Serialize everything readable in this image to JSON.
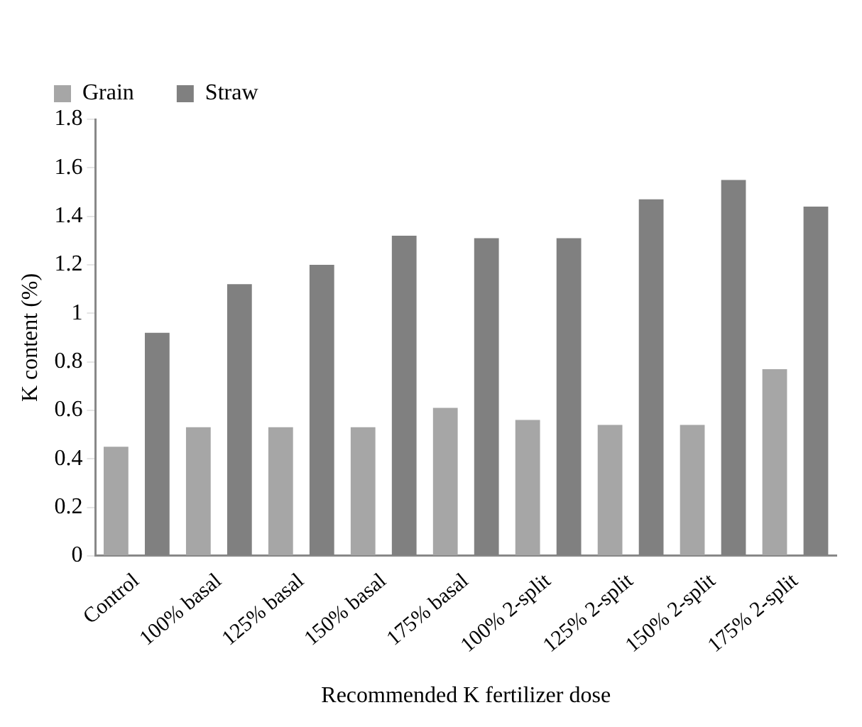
{
  "chart_data": {
    "type": "bar",
    "xlabel": "Recommended K fertilizer dose",
    "ylabel": "K content (%)",
    "categories": [
      "Control",
      "100% basal",
      "125% basal",
      "150% basal",
      "175% basal",
      "100% 2-split",
      "125% 2-split",
      "150% 2-split",
      "175% 2-split"
    ],
    "series": [
      {
        "name": "Grain",
        "color": "#a6a6a6",
        "values": [
          0.45,
          0.53,
          0.53,
          0.53,
          0.61,
          0.56,
          0.54,
          0.54,
          0.77
        ]
      },
      {
        "name": "Straw",
        "color": "#808080",
        "values": [
          0.92,
          1.12,
          1.2,
          1.32,
          1.31,
          1.31,
          1.47,
          1.55,
          1.44
        ]
      }
    ],
    "ylim": [
      0,
      1.8
    ],
    "yticks": [
      0,
      0.2,
      0.4,
      0.6,
      0.8,
      1,
      1.2,
      1.4,
      1.6,
      1.8
    ],
    "grid": false,
    "legend": "top left"
  }
}
